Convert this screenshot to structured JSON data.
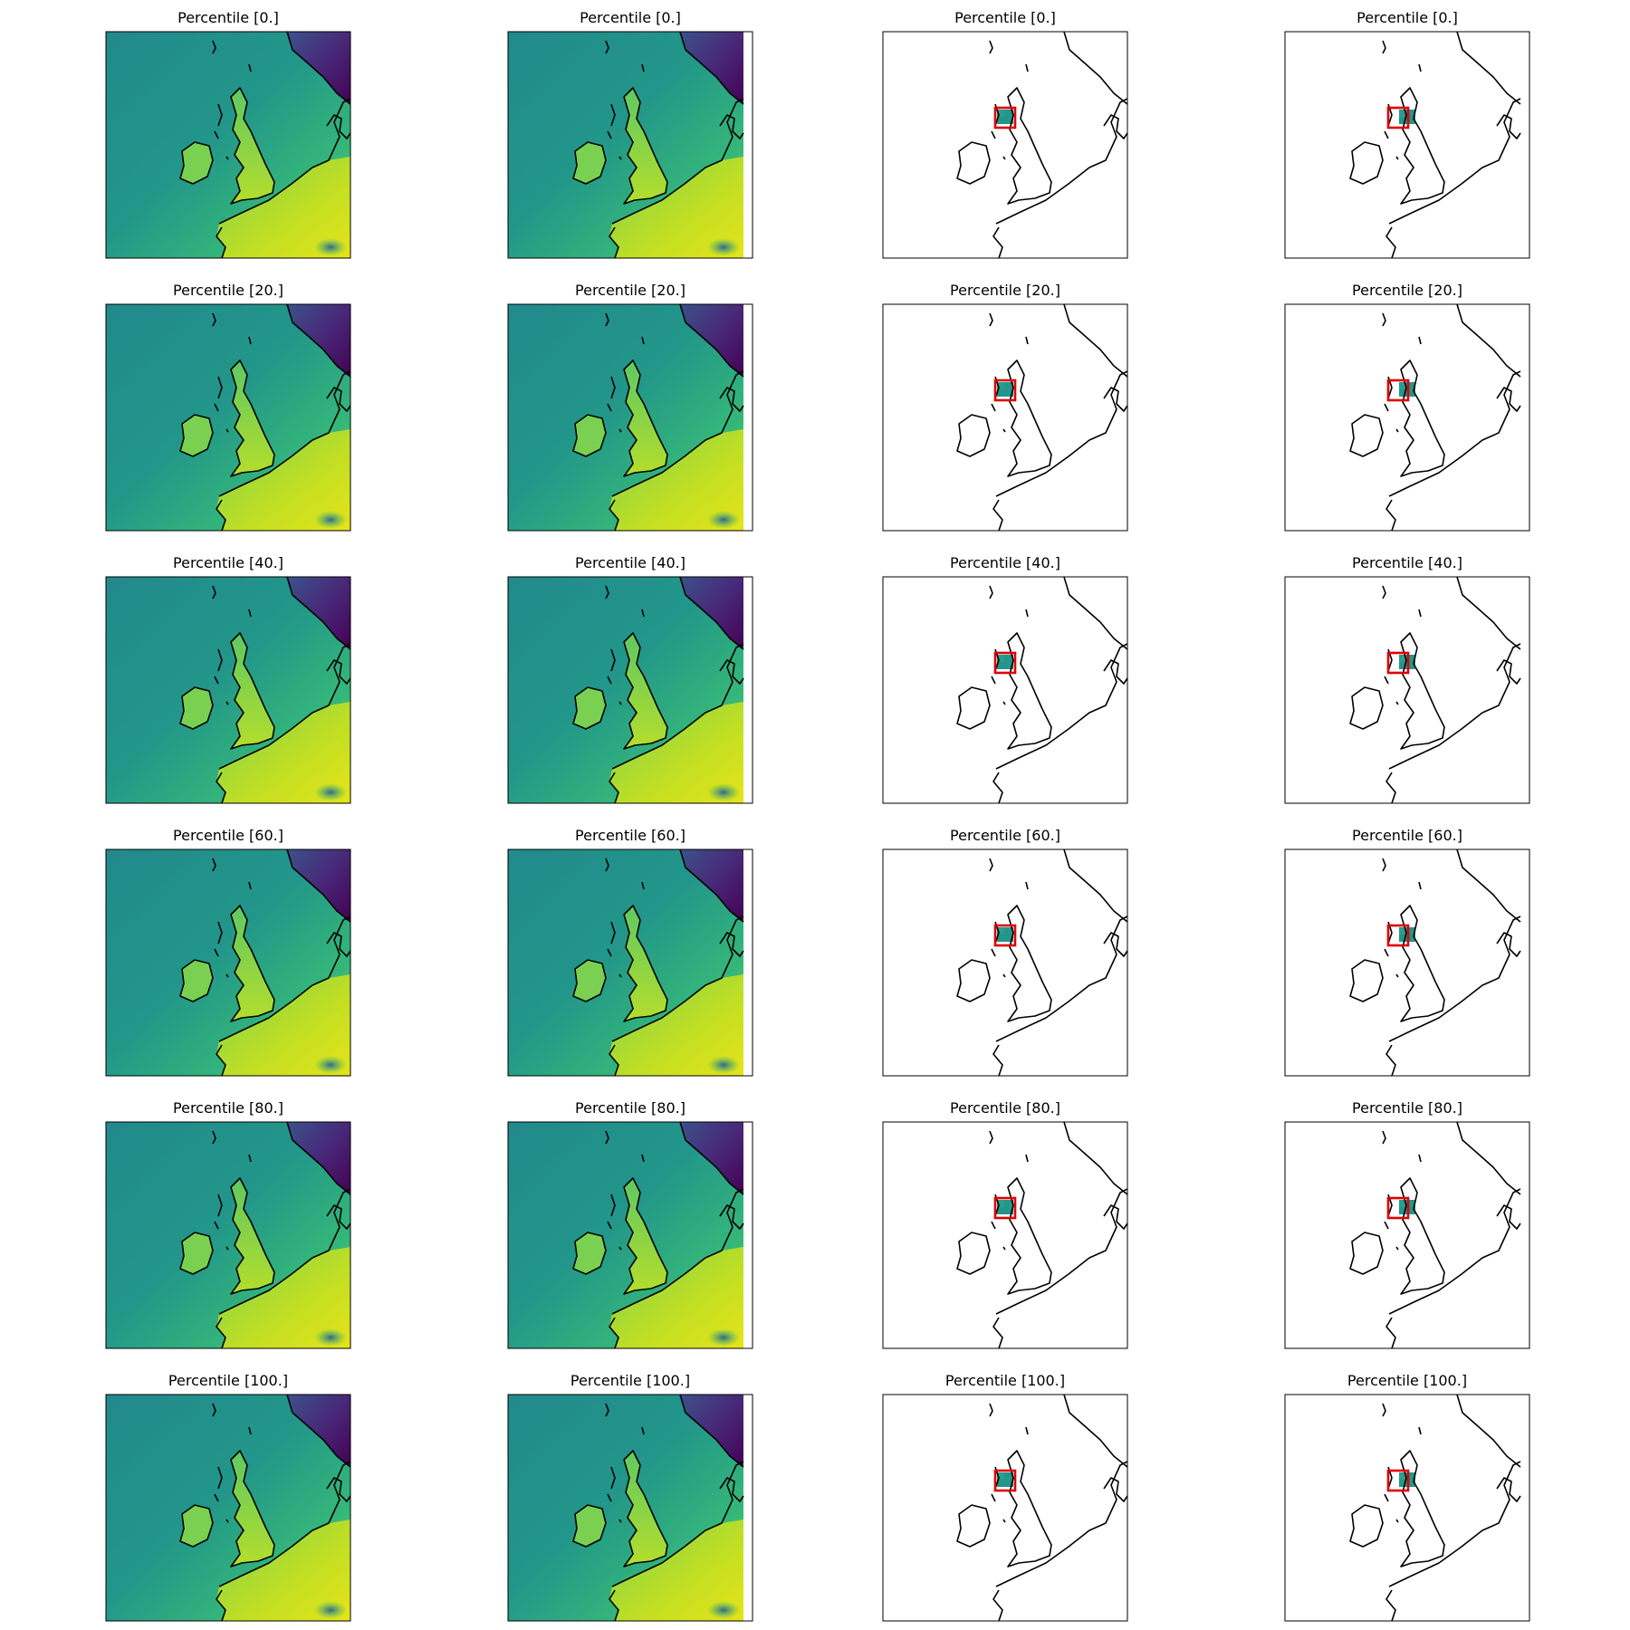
{
  "figure": {
    "rows": [
      {
        "titles": [
          "Percentile [0.]",
          "Percentile [0.]",
          "Percentile [0.]",
          "Percentile [0.]"
        ]
      },
      {
        "titles": [
          "Percentile [20.]",
          "Percentile [20.]",
          "Percentile [20.]",
          "Percentile [20.]"
        ]
      },
      {
        "titles": [
          "Percentile [40.]",
          "Percentile [40.]",
          "Percentile [40.]",
          "Percentile [40.]"
        ]
      },
      {
        "titles": [
          "Percentile [60.]",
          "Percentile [60.]",
          "Percentile [60.]",
          "Percentile [60.]"
        ]
      },
      {
        "titles": [
          "Percentile [80.]",
          "Percentile [80.]",
          "Percentile [80.]",
          "Percentile [80.]"
        ]
      },
      {
        "titles": [
          "Percentile [100.]",
          "Percentile [100.]",
          "Percentile [100.]",
          "Percentile [100.]"
        ]
      }
    ],
    "columns": [
      {
        "style": "full-field",
        "colormap": "viridis"
      },
      {
        "style": "full-field",
        "colormap": "viridis"
      },
      {
        "style": "cropped-box",
        "colormap": "viridis"
      },
      {
        "style": "cropped-box",
        "colormap": "viridis"
      }
    ],
    "colors": {
      "coastline": "#000000",
      "box": "#e00000",
      "frame": "#000000",
      "viridis": [
        "#440154",
        "#3b528b",
        "#21918c",
        "#5ec962",
        "#fde725"
      ]
    }
  }
}
